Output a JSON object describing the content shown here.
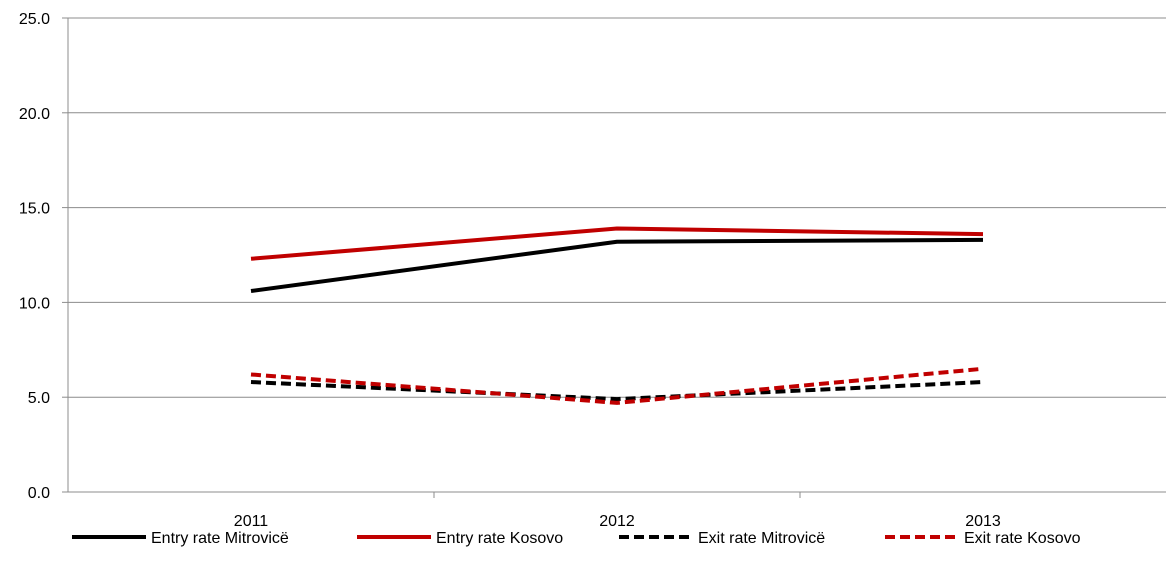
{
  "chart_data": {
    "type": "line",
    "categories": [
      "2011",
      "2012",
      "2013"
    ],
    "ylim": [
      0,
      25
    ],
    "yticks": [
      "0.0",
      "5.0",
      "10.0",
      "15.0",
      "20.0",
      "25.0"
    ],
    "grid": "horizontal",
    "legend_position": "bottom",
    "series": [
      {
        "name": "Entry rate Mitrovicë",
        "values": [
          10.6,
          13.2,
          13.3
        ],
        "color": "#000000",
        "dash": "solid"
      },
      {
        "name": "Entry rate Kosovo",
        "values": [
          12.3,
          13.9,
          13.6
        ],
        "color": "#C00000",
        "dash": "solid"
      },
      {
        "name": "Exit rate Mitrovicë",
        "values": [
          5.8,
          4.9,
          5.8
        ],
        "color": "#000000",
        "dash": "dashed"
      },
      {
        "name": "Exit rate Kosovo",
        "values": [
          6.2,
          4.7,
          6.5
        ],
        "color": "#C00000",
        "dash": "dashed"
      }
    ]
  }
}
